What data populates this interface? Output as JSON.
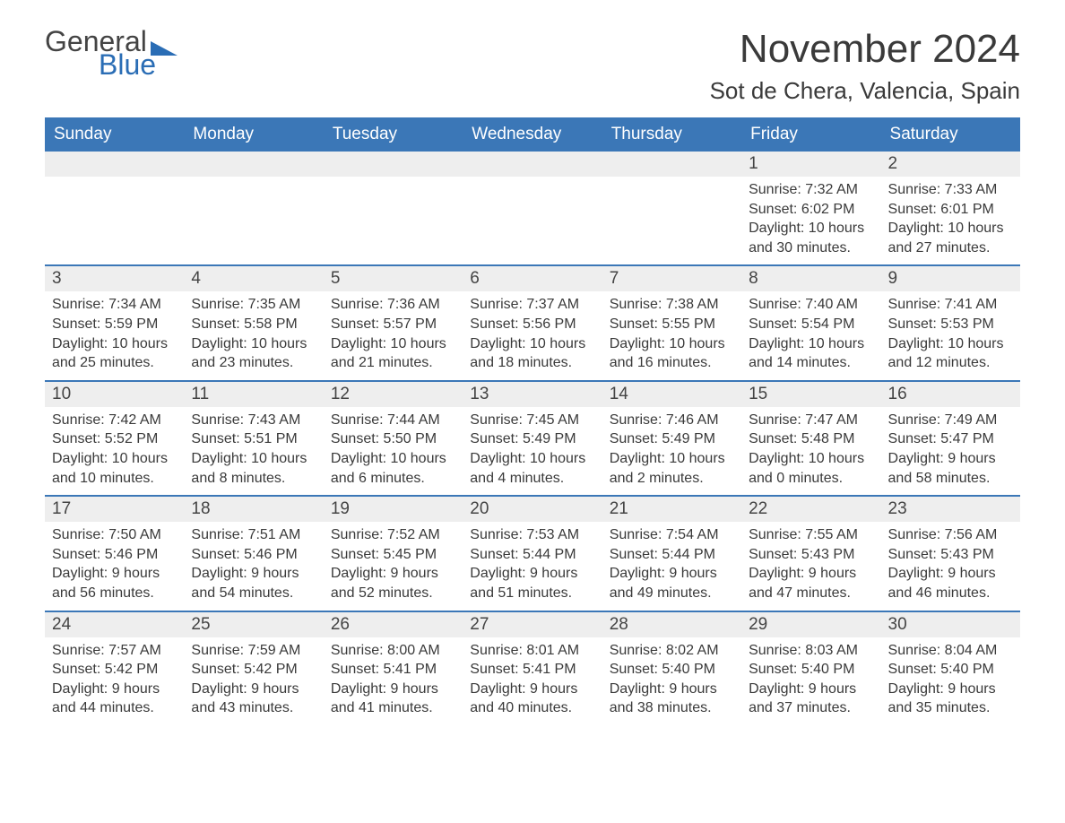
{
  "logo": {
    "line1": "General",
    "line2": "Blue"
  },
  "title": "November 2024",
  "location": "Sot de Chera, Valencia, Spain",
  "colors": {
    "header_bg": "#3b77b7",
    "header_text": "#ffffff",
    "daynum_bg": "#eeeeee",
    "week_border": "#3b77b7",
    "body_text": "#3a3a3a",
    "logo_blue": "#2a6db5"
  },
  "day_headers": [
    "Sunday",
    "Monday",
    "Tuesday",
    "Wednesday",
    "Thursday",
    "Friday",
    "Saturday"
  ],
  "weeks": [
    [
      {
        "empty": true
      },
      {
        "empty": true
      },
      {
        "empty": true
      },
      {
        "empty": true
      },
      {
        "empty": true
      },
      {
        "day": "1",
        "sunrise": "Sunrise: 7:32 AM",
        "sunset": "Sunset: 6:02 PM",
        "dl1": "Daylight: 10 hours",
        "dl2": "and 30 minutes."
      },
      {
        "day": "2",
        "sunrise": "Sunrise: 7:33 AM",
        "sunset": "Sunset: 6:01 PM",
        "dl1": "Daylight: 10 hours",
        "dl2": "and 27 minutes."
      }
    ],
    [
      {
        "day": "3",
        "sunrise": "Sunrise: 7:34 AM",
        "sunset": "Sunset: 5:59 PM",
        "dl1": "Daylight: 10 hours",
        "dl2": "and 25 minutes."
      },
      {
        "day": "4",
        "sunrise": "Sunrise: 7:35 AM",
        "sunset": "Sunset: 5:58 PM",
        "dl1": "Daylight: 10 hours",
        "dl2": "and 23 minutes."
      },
      {
        "day": "5",
        "sunrise": "Sunrise: 7:36 AM",
        "sunset": "Sunset: 5:57 PM",
        "dl1": "Daylight: 10 hours",
        "dl2": "and 21 minutes."
      },
      {
        "day": "6",
        "sunrise": "Sunrise: 7:37 AM",
        "sunset": "Sunset: 5:56 PM",
        "dl1": "Daylight: 10 hours",
        "dl2": "and 18 minutes."
      },
      {
        "day": "7",
        "sunrise": "Sunrise: 7:38 AM",
        "sunset": "Sunset: 5:55 PM",
        "dl1": "Daylight: 10 hours",
        "dl2": "and 16 minutes."
      },
      {
        "day": "8",
        "sunrise": "Sunrise: 7:40 AM",
        "sunset": "Sunset: 5:54 PM",
        "dl1": "Daylight: 10 hours",
        "dl2": "and 14 minutes."
      },
      {
        "day": "9",
        "sunrise": "Sunrise: 7:41 AM",
        "sunset": "Sunset: 5:53 PM",
        "dl1": "Daylight: 10 hours",
        "dl2": "and 12 minutes."
      }
    ],
    [
      {
        "day": "10",
        "sunrise": "Sunrise: 7:42 AM",
        "sunset": "Sunset: 5:52 PM",
        "dl1": "Daylight: 10 hours",
        "dl2": "and 10 minutes."
      },
      {
        "day": "11",
        "sunrise": "Sunrise: 7:43 AM",
        "sunset": "Sunset: 5:51 PM",
        "dl1": "Daylight: 10 hours",
        "dl2": "and 8 minutes."
      },
      {
        "day": "12",
        "sunrise": "Sunrise: 7:44 AM",
        "sunset": "Sunset: 5:50 PM",
        "dl1": "Daylight: 10 hours",
        "dl2": "and 6 minutes."
      },
      {
        "day": "13",
        "sunrise": "Sunrise: 7:45 AM",
        "sunset": "Sunset: 5:49 PM",
        "dl1": "Daylight: 10 hours",
        "dl2": "and 4 minutes."
      },
      {
        "day": "14",
        "sunrise": "Sunrise: 7:46 AM",
        "sunset": "Sunset: 5:49 PM",
        "dl1": "Daylight: 10 hours",
        "dl2": "and 2 minutes."
      },
      {
        "day": "15",
        "sunrise": "Sunrise: 7:47 AM",
        "sunset": "Sunset: 5:48 PM",
        "dl1": "Daylight: 10 hours",
        "dl2": "and 0 minutes."
      },
      {
        "day": "16",
        "sunrise": "Sunrise: 7:49 AM",
        "sunset": "Sunset: 5:47 PM",
        "dl1": "Daylight: 9 hours",
        "dl2": "and 58 minutes."
      }
    ],
    [
      {
        "day": "17",
        "sunrise": "Sunrise: 7:50 AM",
        "sunset": "Sunset: 5:46 PM",
        "dl1": "Daylight: 9 hours",
        "dl2": "and 56 minutes."
      },
      {
        "day": "18",
        "sunrise": "Sunrise: 7:51 AM",
        "sunset": "Sunset: 5:46 PM",
        "dl1": "Daylight: 9 hours",
        "dl2": "and 54 minutes."
      },
      {
        "day": "19",
        "sunrise": "Sunrise: 7:52 AM",
        "sunset": "Sunset: 5:45 PM",
        "dl1": "Daylight: 9 hours",
        "dl2": "and 52 minutes."
      },
      {
        "day": "20",
        "sunrise": "Sunrise: 7:53 AM",
        "sunset": "Sunset: 5:44 PM",
        "dl1": "Daylight: 9 hours",
        "dl2": "and 51 minutes."
      },
      {
        "day": "21",
        "sunrise": "Sunrise: 7:54 AM",
        "sunset": "Sunset: 5:44 PM",
        "dl1": "Daylight: 9 hours",
        "dl2": "and 49 minutes."
      },
      {
        "day": "22",
        "sunrise": "Sunrise: 7:55 AM",
        "sunset": "Sunset: 5:43 PM",
        "dl1": "Daylight: 9 hours",
        "dl2": "and 47 minutes."
      },
      {
        "day": "23",
        "sunrise": "Sunrise: 7:56 AM",
        "sunset": "Sunset: 5:43 PM",
        "dl1": "Daylight: 9 hours",
        "dl2": "and 46 minutes."
      }
    ],
    [
      {
        "day": "24",
        "sunrise": "Sunrise: 7:57 AM",
        "sunset": "Sunset: 5:42 PM",
        "dl1": "Daylight: 9 hours",
        "dl2": "and 44 minutes."
      },
      {
        "day": "25",
        "sunrise": "Sunrise: 7:59 AM",
        "sunset": "Sunset: 5:42 PM",
        "dl1": "Daylight: 9 hours",
        "dl2": "and 43 minutes."
      },
      {
        "day": "26",
        "sunrise": "Sunrise: 8:00 AM",
        "sunset": "Sunset: 5:41 PM",
        "dl1": "Daylight: 9 hours",
        "dl2": "and 41 minutes."
      },
      {
        "day": "27",
        "sunrise": "Sunrise: 8:01 AM",
        "sunset": "Sunset: 5:41 PM",
        "dl1": "Daylight: 9 hours",
        "dl2": "and 40 minutes."
      },
      {
        "day": "28",
        "sunrise": "Sunrise: 8:02 AM",
        "sunset": "Sunset: 5:40 PM",
        "dl1": "Daylight: 9 hours",
        "dl2": "and 38 minutes."
      },
      {
        "day": "29",
        "sunrise": "Sunrise: 8:03 AM",
        "sunset": "Sunset: 5:40 PM",
        "dl1": "Daylight: 9 hours",
        "dl2": "and 37 minutes."
      },
      {
        "day": "30",
        "sunrise": "Sunrise: 8:04 AM",
        "sunset": "Sunset: 5:40 PM",
        "dl1": "Daylight: 9 hours",
        "dl2": "and 35 minutes."
      }
    ]
  ]
}
